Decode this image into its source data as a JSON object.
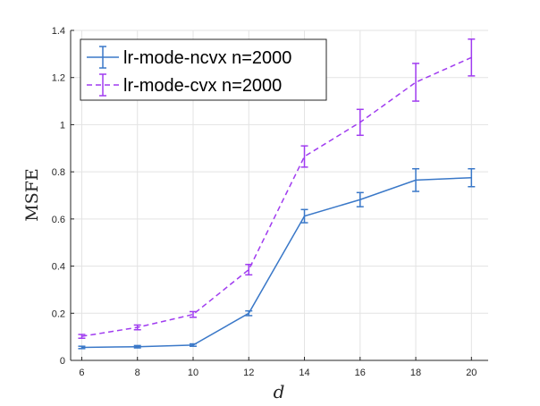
{
  "chart_data": {
    "type": "line",
    "xlabel": "d",
    "ylabel": "MSFE",
    "xlim": [
      5.6,
      20.6
    ],
    "ylim": [
      0,
      1.4
    ],
    "xticks": [
      6,
      8,
      10,
      12,
      14,
      16,
      18,
      20
    ],
    "yticks": [
      0,
      0.2,
      0.4,
      0.6,
      0.8,
      1,
      1.2,
      1.4
    ],
    "grid": true,
    "legend_position": "top-left",
    "series": [
      {
        "name": "lr-mode-ncvx n=2000",
        "color": "#3a78c8",
        "line_style": "solid",
        "x": [
          6,
          8,
          10,
          12,
          14,
          16,
          18,
          20
        ],
        "y": [
          0.055,
          0.058,
          0.065,
          0.2,
          0.612,
          0.682,
          0.765,
          0.775
        ],
        "err": [
          0.005,
          0.005,
          0.005,
          0.01,
          0.028,
          0.03,
          0.048,
          0.038
        ]
      },
      {
        "name": "lr-mode-cvx n=2000",
        "color": "#a03cf0",
        "line_style": "dashed",
        "x": [
          6,
          8,
          10,
          12,
          14,
          16,
          18,
          20
        ],
        "y": [
          0.102,
          0.14,
          0.195,
          0.385,
          0.865,
          1.01,
          1.18,
          1.285
        ],
        "err": [
          0.008,
          0.01,
          0.012,
          0.022,
          0.045,
          0.055,
          0.08,
          0.078
        ]
      }
    ]
  }
}
